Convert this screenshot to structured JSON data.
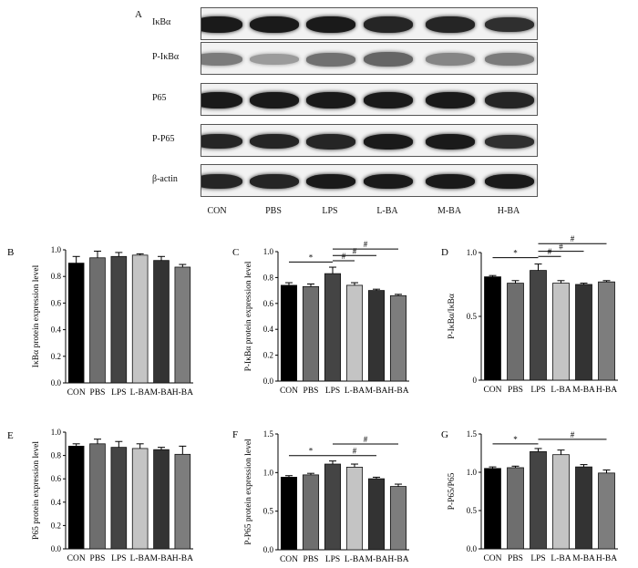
{
  "figure": {
    "panel_a_label": "A",
    "blot": {
      "rows": [
        {
          "label": "IκBα",
          "intensity": [
            0.95,
            0.95,
            0.95,
            0.9,
            0.9,
            0.85
          ],
          "thickness": [
            0.55,
            0.55,
            0.55,
            0.55,
            0.55,
            0.45
          ]
        },
        {
          "label": "P-IκBα",
          "intensity": [
            0.5,
            0.35,
            0.55,
            0.6,
            0.45,
            0.5
          ],
          "thickness": [
            0.35,
            0.3,
            0.4,
            0.45,
            0.35,
            0.35
          ]
        },
        {
          "label": "P65",
          "intensity": [
            0.95,
            0.95,
            0.95,
            0.95,
            0.95,
            0.9
          ],
          "thickness": [
            0.55,
            0.55,
            0.55,
            0.55,
            0.55,
            0.55
          ]
        },
        {
          "label": "P-P65",
          "intensity": [
            0.9,
            0.9,
            0.9,
            0.95,
            0.95,
            0.85
          ],
          "thickness": [
            0.45,
            0.45,
            0.5,
            0.5,
            0.5,
            0.4
          ]
        },
        {
          "label": "β-actin",
          "intensity": [
            0.9,
            0.9,
            0.95,
            0.95,
            0.95,
            0.95
          ],
          "thickness": [
            0.45,
            0.45,
            0.45,
            0.45,
            0.45,
            0.45
          ]
        }
      ],
      "lanes": [
        "CON",
        "PBS",
        "LPS",
        "L-BA",
        "M-BA",
        "H-BA"
      ]
    }
  },
  "chart_data": [
    {
      "panel": "B",
      "type": "bar",
      "categories": [
        "CON",
        "PBS",
        "LPS",
        "L-BA",
        "M-BA",
        "H-BA"
      ],
      "values": [
        0.9,
        0.94,
        0.95,
        0.96,
        0.92,
        0.87
      ],
      "errors": [
        0.05,
        0.05,
        0.03,
        0.01,
        0.03,
        0.02
      ],
      "ylabel": "IκBα protein expression level",
      "ylim": [
        0,
        1.0
      ],
      "yticks": [
        "0.0",
        "0.2",
        "0.4",
        "0.6",
        "0.8",
        "1.0"
      ],
      "bar_colors": [
        "#000000",
        "#6e6e6e",
        "#444444",
        "#c4c4c4",
        "#333333",
        "#7d7d7d"
      ],
      "brackets": []
    },
    {
      "panel": "C",
      "type": "bar",
      "categories": [
        "CON",
        "PBS",
        "LPS",
        "L-BA",
        "M-BA",
        "H-BA"
      ],
      "values": [
        0.74,
        0.73,
        0.83,
        0.74,
        0.7,
        0.66
      ],
      "errors": [
        0.02,
        0.02,
        0.05,
        0.02,
        0.01,
        0.01
      ],
      "ylabel": "P-IκBα protein expression level",
      "ylim": [
        0,
        1.0
      ],
      "yticks": [
        "0.0",
        "0.2",
        "0.4",
        "0.6",
        "0.8",
        "1.0"
      ],
      "bar_colors": [
        "#000000",
        "#6e6e6e",
        "#444444",
        "#c4c4c4",
        "#333333",
        "#7d7d7d"
      ],
      "brackets": [
        {
          "from": 0,
          "to": 2,
          "y": 0.92,
          "label": "*"
        },
        {
          "from": 2,
          "to": 3,
          "y": 0.93,
          "label": "#"
        },
        {
          "from": 2,
          "to": 4,
          "y": 0.97,
          "label": "#"
        },
        {
          "from": 2,
          "to": 5,
          "y": 1.02,
          "label": "#"
        }
      ]
    },
    {
      "panel": "D",
      "type": "bar",
      "categories": [
        "CON",
        "PBS",
        "LPS",
        "L-BA",
        "M-BA",
        "H-BA"
      ],
      "values": [
        0.81,
        0.76,
        0.86,
        0.76,
        0.75,
        0.77
      ],
      "errors": [
        0.01,
        0.02,
        0.05,
        0.02,
        0.01,
        0.01
      ],
      "ylabel": "P-IκBα/IκBα",
      "ylim": [
        0,
        1.0
      ],
      "yticks": [
        "0",
        "0.5",
        "1.0"
      ],
      "bar_colors": [
        "#000000",
        "#6e6e6e",
        "#444444",
        "#c4c4c4",
        "#333333",
        "#7d7d7d"
      ],
      "brackets": [
        {
          "from": 0,
          "to": 2,
          "y": 0.96,
          "label": "*"
        },
        {
          "from": 2,
          "to": 3,
          "y": 0.97,
          "label": "#"
        },
        {
          "from": 2,
          "to": 4,
          "y": 1.01,
          "label": "#"
        },
        {
          "from": 2,
          "to": 5,
          "y": 1.07,
          "label": "#"
        }
      ]
    },
    {
      "panel": "E",
      "type": "bar",
      "categories": [
        "CON",
        "PBS",
        "LPS",
        "L-BA",
        "M-BA",
        "H-BA"
      ],
      "values": [
        0.88,
        0.9,
        0.87,
        0.86,
        0.85,
        0.81
      ],
      "errors": [
        0.02,
        0.04,
        0.05,
        0.04,
        0.02,
        0.07
      ],
      "ylabel": "P65 protein expression level",
      "ylim": [
        0,
        1.0
      ],
      "yticks": [
        "0.0",
        "0.2",
        "0.4",
        "0.6",
        "0.8",
        "1.0"
      ],
      "bar_colors": [
        "#000000",
        "#6e6e6e",
        "#444444",
        "#c4c4c4",
        "#333333",
        "#7d7d7d"
      ],
      "brackets": []
    },
    {
      "panel": "F",
      "type": "bar",
      "categories": [
        "CON",
        "PBS",
        "LPS",
        "L-BA",
        "M-BA",
        "H-BA"
      ],
      "values": [
        0.94,
        0.97,
        1.11,
        1.07,
        0.92,
        0.82
      ],
      "errors": [
        0.02,
        0.02,
        0.04,
        0.04,
        0.02,
        0.03
      ],
      "ylabel": "P-P65 protein expression level",
      "ylim": [
        0,
        1.5
      ],
      "yticks": [
        "0.0",
        "0.5",
        "1.0",
        "1.5"
      ],
      "bar_colors": [
        "#000000",
        "#6e6e6e",
        "#444444",
        "#c4c4c4",
        "#333333",
        "#7d7d7d"
      ],
      "brackets": [
        {
          "from": 0,
          "to": 2,
          "y": 1.22,
          "label": "*"
        },
        {
          "from": 2,
          "to": 4,
          "y": 1.22,
          "label": "#"
        },
        {
          "from": 2,
          "to": 5,
          "y": 1.37,
          "label": "#"
        }
      ]
    },
    {
      "panel": "G",
      "type": "bar",
      "categories": [
        "CON",
        "PBS",
        "LPS",
        "L-BA",
        "M-BA",
        "H-BA"
      ],
      "values": [
        1.05,
        1.06,
        1.27,
        1.23,
        1.07,
        0.99
      ],
      "errors": [
        0.02,
        0.02,
        0.04,
        0.06,
        0.03,
        0.04
      ],
      "ylabel": "P-P65/P65",
      "ylim": [
        0,
        1.5
      ],
      "yticks": [
        "0.0",
        "0.5",
        "1.0",
        "1.5"
      ],
      "bar_colors": [
        "#000000",
        "#6e6e6e",
        "#444444",
        "#c4c4c4",
        "#333333",
        "#7d7d7d"
      ],
      "brackets": [
        {
          "from": 0,
          "to": 2,
          "y": 1.37,
          "label": "*"
        },
        {
          "from": 2,
          "to": 5,
          "y": 1.43,
          "label": "#"
        }
      ]
    }
  ]
}
